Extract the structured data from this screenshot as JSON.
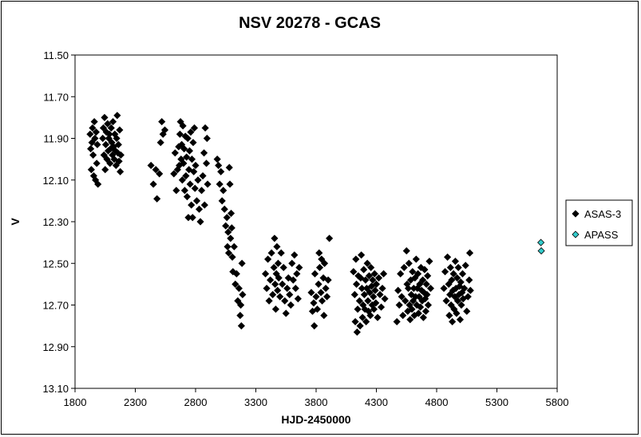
{
  "chart_data": {
    "type": "scatter",
    "title": "NSV 20278 - GCAS",
    "xlabel": "HJD-2450000",
    "ylabel": "V",
    "xlim": [
      1800,
      5800
    ],
    "ylim": [
      11.5,
      13.1
    ],
    "y_inverted": true,
    "grid": false,
    "legend_position": "right",
    "xticks": [
      "1800",
      "2300",
      "2800",
      "3300",
      "3800",
      "4300",
      "4800",
      "5300",
      "5800"
    ],
    "yticks": [
      "11.50",
      "11.70",
      "11.90",
      "12.10",
      "12.30",
      "12.50",
      "12.70",
      "12.90",
      "13.10"
    ],
    "series": [
      {
        "name": "ASAS-3",
        "color": "#000000",
        "marker": "diamond",
        "points": [
          [
            1925,
            11.88
          ],
          [
            1930,
            11.95
          ],
          [
            1935,
            12.05
          ],
          [
            1940,
            11.92
          ],
          [
            1945,
            11.85
          ],
          [
            1950,
            11.98
          ],
          [
            1955,
            12.08
          ],
          [
            1960,
            11.82
          ],
          [
            1965,
            11.9
          ],
          [
            1970,
            12.1
          ],
          [
            1975,
            11.87
          ],
          [
            1980,
            12.02
          ],
          [
            1985,
            11.93
          ],
          [
            1990,
            12.12
          ],
          [
            2030,
            11.9
          ],
          [
            2035,
            11.85
          ],
          [
            2040,
            11.98
          ],
          [
            2045,
            11.8
          ],
          [
            2050,
            12.05
          ],
          [
            2055,
            11.93
          ],
          [
            2060,
            11.87
          ],
          [
            2065,
            12.0
          ],
          [
            2070,
            11.83
          ],
          [
            2075,
            11.96
          ],
          [
            2080,
            11.9
          ],
          [
            2085,
            11.88
          ],
          [
            2090,
            12.02
          ],
          [
            2095,
            11.95
          ],
          [
            2100,
            11.85
          ],
          [
            2105,
            11.92
          ],
          [
            2110,
            11.98
          ],
          [
            2115,
            11.82
          ],
          [
            2120,
            11.94
          ],
          [
            2125,
            12.0
          ],
          [
            2130,
            11.88
          ],
          [
            2135,
            11.96
          ],
          [
            2140,
            12.03
          ],
          [
            2145,
            11.9
          ],
          [
            2150,
            11.79
          ],
          [
            2155,
            11.97
          ],
          [
            2160,
            11.93
          ],
          [
            2165,
            12.01
          ],
          [
            2170,
            11.86
          ],
          [
            2175,
            12.06
          ],
          [
            2180,
            11.98
          ],
          [
            2430,
            12.03
          ],
          [
            2450,
            12.12
          ],
          [
            2470,
            12.05
          ],
          [
            2480,
            12.19
          ],
          [
            2500,
            12.07
          ],
          [
            2510,
            11.92
          ],
          [
            2520,
            11.82
          ],
          [
            2530,
            11.88
          ],
          [
            2545,
            11.86
          ],
          [
            2620,
            12.07
          ],
          [
            2630,
            11.97
          ],
          [
            2640,
            12.15
          ],
          [
            2650,
            12.05
          ],
          [
            2660,
            11.94
          ],
          [
            2665,
            12.03
          ],
          [
            2670,
            11.88
          ],
          [
            2675,
            11.82
          ],
          [
            2680,
            12.0
          ],
          [
            2685,
            11.93
          ],
          [
            2690,
            12.1
          ],
          [
            2695,
            11.84
          ],
          [
            2700,
            12.02
          ],
          [
            2705,
            11.95
          ],
          [
            2710,
            12.15
          ],
          [
            2715,
            11.89
          ],
          [
            2720,
            12.08
          ],
          [
            2725,
            11.99
          ],
          [
            2730,
            12.18
          ],
          [
            2735,
            11.9
          ],
          [
            2740,
            12.28
          ],
          [
            2745,
            12.05
          ],
          [
            2750,
            11.96
          ],
          [
            2755,
            12.12
          ],
          [
            2760,
            11.87
          ],
          [
            2765,
            12.22
          ],
          [
            2770,
            12.0
          ],
          [
            2775,
            12.28
          ],
          [
            2780,
            11.92
          ],
          [
            2785,
            12.06
          ],
          [
            2790,
            11.85
          ],
          [
            2795,
            12.14
          ],
          [
            2800,
            12.03
          ],
          [
            2810,
            12.2
          ],
          [
            2820,
            12.1
          ],
          [
            2830,
            12.24
          ],
          [
            2840,
            12.3
          ],
          [
            2850,
            12.15
          ],
          [
            2860,
            12.08
          ],
          [
            2870,
            11.97
          ],
          [
            2875,
            12.22
          ],
          [
            2880,
            11.85
          ],
          [
            2890,
            12.02
          ],
          [
            2895,
            11.9
          ],
          [
            2900,
            12.12
          ],
          [
            2980,
            12.0
          ],
          [
            2990,
            12.03
          ],
          [
            3000,
            12.12
          ],
          [
            3010,
            12.06
          ],
          [
            3020,
            12.2
          ],
          [
            3030,
            12.15
          ],
          [
            3040,
            12.24
          ],
          [
            3050,
            12.32
          ],
          [
            3060,
            12.28
          ],
          [
            3065,
            12.42
          ],
          [
            3070,
            12.35
          ],
          [
            3075,
            12.45
          ],
          [
            3080,
            12.04
          ],
          [
            3085,
            12.12
          ],
          [
            3090,
            12.38
          ],
          [
            3095,
            12.26
          ],
          [
            3100,
            12.33
          ],
          [
            3105,
            12.47
          ],
          [
            3110,
            12.54
          ],
          [
            3120,
            12.42
          ],
          [
            3130,
            12.6
          ],
          [
            3140,
            12.55
          ],
          [
            3150,
            12.68
          ],
          [
            3160,
            12.62
          ],
          [
            3170,
            12.75
          ],
          [
            3175,
            12.7
          ],
          [
            3180,
            12.8
          ],
          [
            3185,
            12.5
          ],
          [
            3190,
            12.65
          ],
          [
            3380,
            12.55
          ],
          [
            3390,
            12.62
          ],
          [
            3400,
            12.48
          ],
          [
            3410,
            12.68
          ],
          [
            3420,
            12.58
          ],
          [
            3430,
            12.45
          ],
          [
            3440,
            12.65
          ],
          [
            3450,
            12.52
          ],
          [
            3455,
            12.38
          ],
          [
            3460,
            12.6
          ],
          [
            3465,
            12.72
          ],
          [
            3470,
            12.55
          ],
          [
            3475,
            12.42
          ],
          [
            3480,
            12.63
          ],
          [
            3485,
            12.5
          ],
          [
            3490,
            12.57
          ],
          [
            3500,
            12.66
          ],
          [
            3510,
            12.45
          ],
          [
            3520,
            12.6
          ],
          [
            3530,
            12.52
          ],
          [
            3540,
            12.68
          ],
          [
            3550,
            12.74
          ],
          [
            3560,
            12.62
          ],
          [
            3570,
            12.57
          ],
          [
            3580,
            12.65
          ],
          [
            3590,
            12.7
          ],
          [
            3600,
            12.5
          ],
          [
            3610,
            12.58
          ],
          [
            3620,
            12.46
          ],
          [
            3630,
            12.62
          ],
          [
            3640,
            12.55
          ],
          [
            3650,
            12.67
          ],
          [
            3660,
            12.52
          ],
          [
            3760,
            12.64
          ],
          [
            3770,
            12.73
          ],
          [
            3780,
            12.69
          ],
          [
            3785,
            12.8
          ],
          [
            3790,
            12.55
          ],
          [
            3800,
            12.66
          ],
          [
            3810,
            12.72
          ],
          [
            3820,
            12.6
          ],
          [
            3825,
            12.45
          ],
          [
            3830,
            12.52
          ],
          [
            3840,
            12.64
          ],
          [
            3845,
            12.48
          ],
          [
            3850,
            12.68
          ],
          [
            3860,
            12.57
          ],
          [
            3865,
            12.75
          ],
          [
            3870,
            12.5
          ],
          [
            3880,
            12.62
          ],
          [
            3890,
            12.66
          ],
          [
            3900,
            12.58
          ],
          [
            3910,
            12.38
          ],
          [
            4110,
            12.54
          ],
          [
            4120,
            12.65
          ],
          [
            4125,
            12.78
          ],
          [
            4130,
            12.48
          ],
          [
            4135,
            12.6
          ],
          [
            4140,
            12.83
          ],
          [
            4145,
            12.72
          ],
          [
            4150,
            12.56
          ],
          [
            4160,
            12.68
          ],
          [
            4165,
            12.8
          ],
          [
            4170,
            12.57
          ],
          [
            4175,
            12.46
          ],
          [
            4180,
            12.62
          ],
          [
            4185,
            12.76
          ],
          [
            4190,
            12.7
          ],
          [
            4195,
            12.53
          ],
          [
            4200,
            12.65
          ],
          [
            4205,
            12.72
          ],
          [
            4210,
            12.58
          ],
          [
            4215,
            12.78
          ],
          [
            4220,
            12.62
          ],
          [
            4225,
            12.5
          ],
          [
            4230,
            12.68
          ],
          [
            4235,
            12.73
          ],
          [
            4240,
            12.56
          ],
          [
            4245,
            12.64
          ],
          [
            4250,
            12.75
          ],
          [
            4255,
            12.52
          ],
          [
            4260,
            12.61
          ],
          [
            4265,
            12.7
          ],
          [
            4270,
            12.58
          ],
          [
            4275,
            12.66
          ],
          [
            4280,
            12.72
          ],
          [
            4285,
            12.55
          ],
          [
            4290,
            12.63
          ],
          [
            4295,
            12.69
          ],
          [
            4300,
            12.6
          ],
          [
            4310,
            12.76
          ],
          [
            4320,
            12.57
          ],
          [
            4330,
            12.65
          ],
          [
            4340,
            12.71
          ],
          [
            4350,
            12.62
          ],
          [
            4360,
            12.55
          ],
          [
            4370,
            12.67
          ],
          [
            4470,
            12.78
          ],
          [
            4480,
            12.63
          ],
          [
            4490,
            12.7
          ],
          [
            4500,
            12.55
          ],
          [
            4510,
            12.66
          ],
          [
            4520,
            12.75
          ],
          [
            4530,
            12.52
          ],
          [
            4540,
            12.68
          ],
          [
            4550,
            12.44
          ],
          [
            4555,
            12.6
          ],
          [
            4560,
            12.73
          ],
          [
            4565,
            12.62
          ],
          [
            4570,
            12.5
          ],
          [
            4575,
            12.7
          ],
          [
            4580,
            12.77
          ],
          [
            4585,
            12.58
          ],
          [
            4590,
            12.65
          ],
          [
            4595,
            12.72
          ],
          [
            4600,
            12.54
          ],
          [
            4605,
            12.68
          ],
          [
            4610,
            12.62
          ],
          [
            4615,
            12.75
          ],
          [
            4620,
            12.57
          ],
          [
            4625,
            12.66
          ],
          [
            4630,
            12.48
          ],
          [
            4635,
            12.7
          ],
          [
            4640,
            12.62
          ],
          [
            4645,
            12.55
          ],
          [
            4650,
            12.74
          ],
          [
            4655,
            12.66
          ],
          [
            4660,
            12.6
          ],
          [
            4665,
            12.71
          ],
          [
            4670,
            12.52
          ],
          [
            4675,
            12.63
          ],
          [
            4680,
            12.68
          ],
          [
            4685,
            12.58
          ],
          [
            4690,
            12.76
          ],
          [
            4695,
            12.64
          ],
          [
            4700,
            12.53
          ],
          [
            4705,
            12.67
          ],
          [
            4710,
            12.73
          ],
          [
            4715,
            12.6
          ],
          [
            4720,
            12.65
          ],
          [
            4725,
            12.56
          ],
          [
            4730,
            12.7
          ],
          [
            4740,
            12.49
          ],
          [
            4750,
            12.62
          ],
          [
            4860,
            12.62
          ],
          [
            4870,
            12.54
          ],
          [
            4880,
            12.68
          ],
          [
            4890,
            12.47
          ],
          [
            4900,
            12.6
          ],
          [
            4905,
            12.75
          ],
          [
            4910,
            12.65
          ],
          [
            4915,
            12.52
          ],
          [
            4920,
            12.7
          ],
          [
            4925,
            12.58
          ],
          [
            4930,
            12.78
          ],
          [
            4935,
            12.63
          ],
          [
            4940,
            12.55
          ],
          [
            4945,
            12.72
          ],
          [
            4950,
            12.66
          ],
          [
            4955,
            12.49
          ],
          [
            4960,
            12.62
          ],
          [
            4965,
            12.74
          ],
          [
            4970,
            12.57
          ],
          [
            4975,
            12.68
          ],
          [
            4980,
            12.52
          ],
          [
            4985,
            12.65
          ],
          [
            4990,
            12.61
          ],
          [
            4995,
            12.77
          ],
          [
            5000,
            12.59
          ],
          [
            5005,
            12.7
          ],
          [
            5010,
            12.64
          ],
          [
            5015,
            12.55
          ],
          [
            5020,
            12.67
          ],
          [
            5030,
            12.62
          ],
          [
            5040,
            12.51
          ],
          [
            5050,
            12.73
          ],
          [
            5060,
            12.66
          ],
          [
            5070,
            12.58
          ],
          [
            5075,
            12.45
          ],
          [
            5080,
            12.63
          ]
        ]
      },
      {
        "name": "APASS",
        "color": "#33cccc",
        "marker": "diamond",
        "points": [
          [
            5665,
            12.4
          ],
          [
            5668,
            12.44
          ]
        ]
      }
    ]
  }
}
